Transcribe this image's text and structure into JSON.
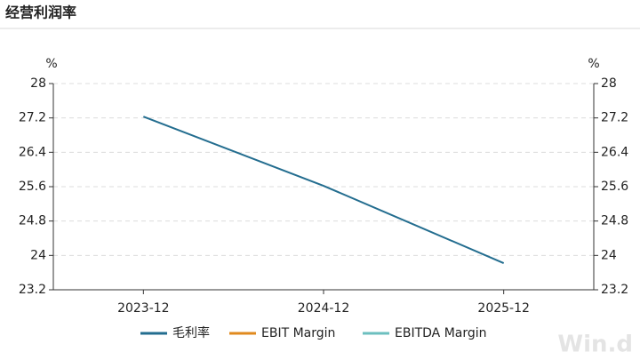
{
  "chart_data": {
    "type": "line",
    "title": "经营利润率",
    "categories": [
      "2023-12",
      "2024-12",
      "2025-12"
    ],
    "series": [
      {
        "name": "毛利率",
        "color": "#236d8f",
        "values": [
          27.23,
          25.62,
          23.82
        ]
      },
      {
        "name": "EBIT Margin",
        "color": "#e08a1e",
        "values": [
          null,
          null,
          null
        ]
      },
      {
        "name": "EBITDA Margin",
        "color": "#6cbfbf",
        "values": [
          null,
          null,
          null
        ]
      }
    ],
    "y_label": "%",
    "y2_label": "%",
    "ylim": [
      23.2,
      28
    ],
    "yticks": [
      23.2,
      24,
      24.8,
      25.6,
      26.4,
      27.2,
      28
    ],
    "y2lim": [
      23.2,
      28
    ],
    "y2ticks": [
      23.2,
      24,
      24.8,
      25.6,
      26.4,
      27.2,
      28
    ],
    "grid": true,
    "legend": "bottom",
    "watermark": "Win.d"
  }
}
